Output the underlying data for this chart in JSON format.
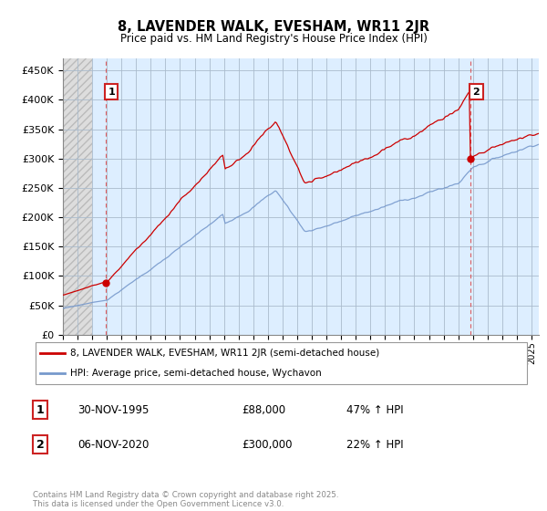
{
  "title": "8, LAVENDER WALK, EVESHAM, WR11 2JR",
  "subtitle": "Price paid vs. HM Land Registry's House Price Index (HPI)",
  "ylabel_ticks": [
    "£0",
    "£50K",
    "£100K",
    "£150K",
    "£200K",
    "£250K",
    "£300K",
    "£350K",
    "£400K",
    "£450K"
  ],
  "ytick_values": [
    0,
    50000,
    100000,
    150000,
    200000,
    250000,
    300000,
    350000,
    400000,
    450000
  ],
  "ylim": [
    0,
    470000
  ],
  "xlim_start": 1993.0,
  "xlim_end": 2025.5,
  "grid_color": "#aabbcc",
  "plot_bg_color": "#ddeeff",
  "hatch_bg_color": "#cccccc",
  "red_line_color": "#cc0000",
  "blue_line_color": "#7799cc",
  "red_dot_color": "#cc0000",
  "sale1_x": 1995.917,
  "sale1_y": 88000,
  "sale2_x": 2020.833,
  "sale2_y": 300000,
  "legend_label_red": "8, LAVENDER WALK, EVESHAM, WR11 2JR (semi-detached house)",
  "legend_label_blue": "HPI: Average price, semi-detached house, Wychavon",
  "table_row1": [
    "1",
    "30-NOV-1995",
    "£88,000",
    "47% ↑ HPI"
  ],
  "table_row2": [
    "2",
    "06-NOV-2020",
    "£300,000",
    "22% ↑ HPI"
  ],
  "footnote": "Contains HM Land Registry data © Crown copyright and database right 2025.\nThis data is licensed under the Open Government Licence v3.0.",
  "background_color": "#ffffff"
}
